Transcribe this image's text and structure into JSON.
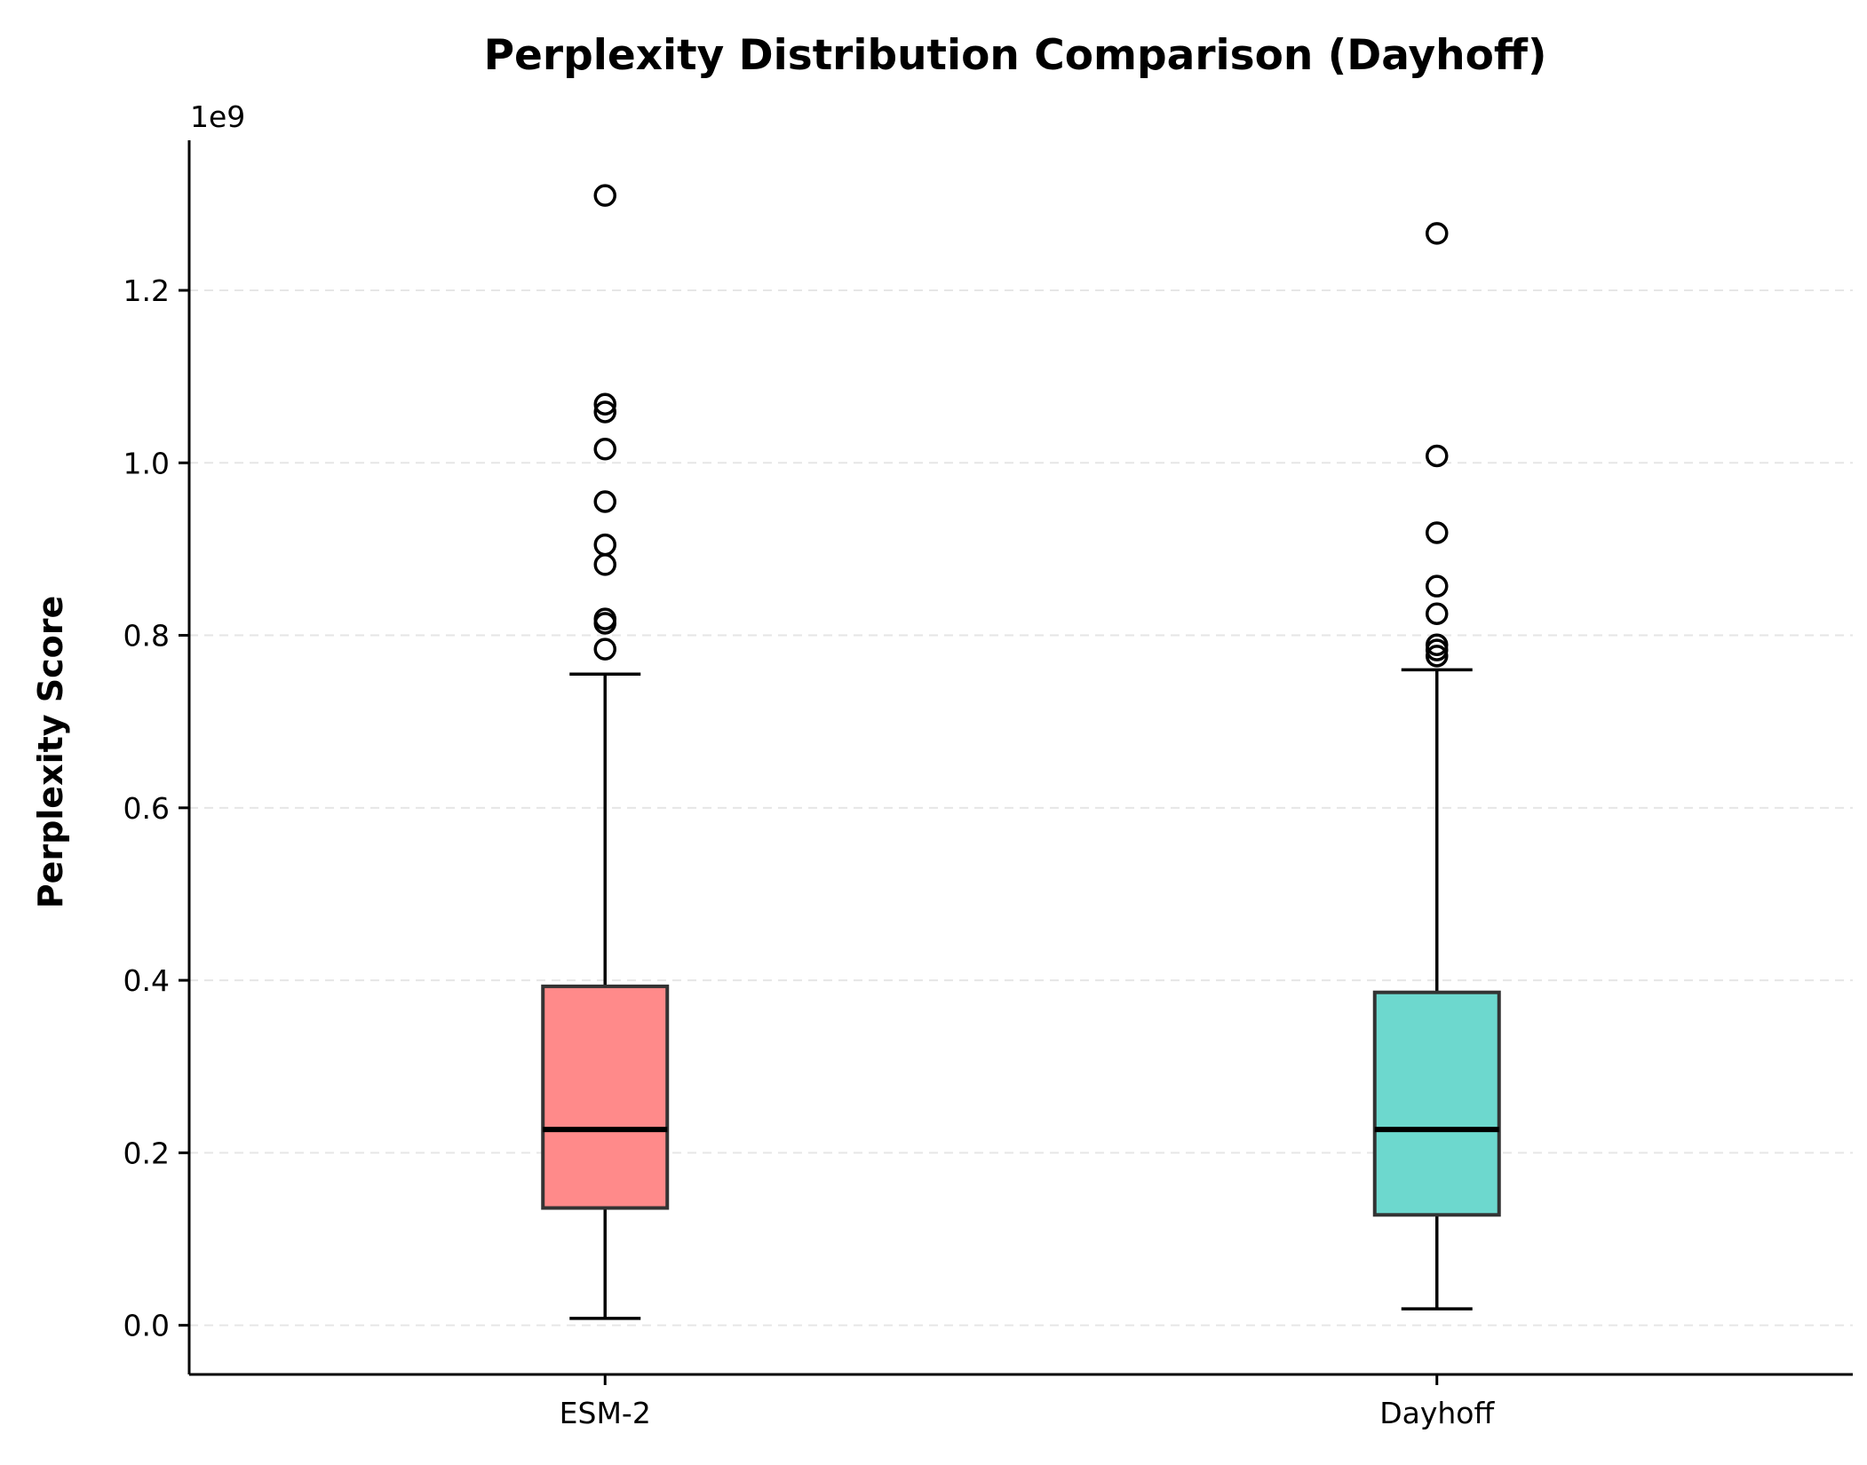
{
  "chart_data": {
    "type": "box",
    "title": "Perplexity Distribution Comparison (Dayhoff)",
    "xlabel": "",
    "ylabel": "Perplexity Score",
    "y_offset_label": "1e9",
    "ylim": [
      -0.057,
      1.374
    ],
    "yticks": [
      0.0,
      0.2,
      0.4,
      0.6,
      0.8,
      1.0,
      1.2
    ],
    "ytick_labels": [
      "0.0",
      "0.2",
      "0.4",
      "0.6",
      "0.8",
      "1.0",
      "1.2"
    ],
    "grid": "y-dashed",
    "categories": [
      "ESM-2",
      "Dayhoff"
    ],
    "series": [
      {
        "category": "ESM-2",
        "color": "#FF8A8A",
        "whisker_low": 0.008,
        "q1": 0.136,
        "median": 0.227,
        "q3": 0.393,
        "whisker_high": 0.755,
        "outliers": [
          0.784,
          0.814,
          0.819,
          0.882,
          0.905,
          0.955,
          1.016,
          1.059,
          1.068,
          1.31
        ]
      },
      {
        "category": "Dayhoff",
        "color": "#6DD8CE",
        "whisker_low": 0.019,
        "q1": 0.128,
        "median": 0.227,
        "q3": 0.386,
        "whisker_high": 0.76,
        "outliers": [
          0.776,
          0.783,
          0.789,
          0.825,
          0.857,
          0.919,
          1.008,
          1.266
        ]
      }
    ]
  }
}
